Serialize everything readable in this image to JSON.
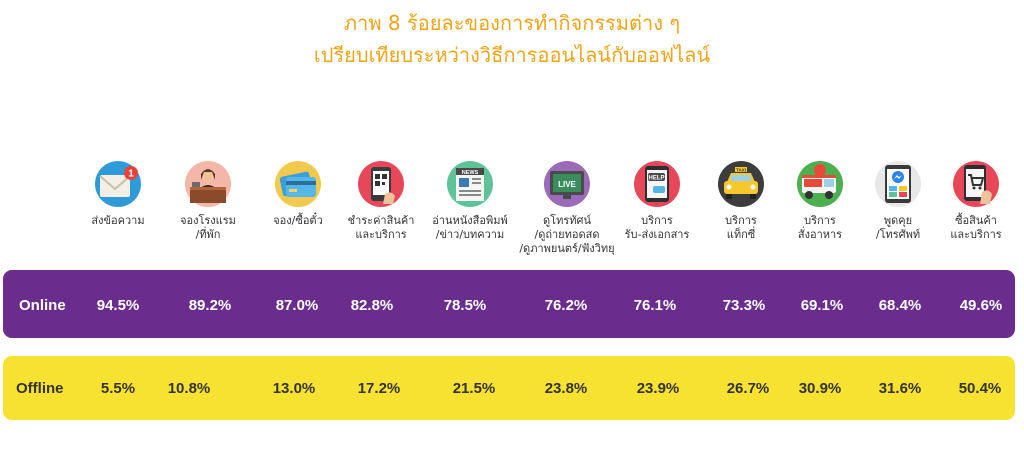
{
  "title_line1": "ภาพ 8 ร้อยละของการทำกิจกรรมต่าง ๆ",
  "title_line2": "เปรียบเทียบระหว่างวิธีการออนไลน์กับออฟไลน์",
  "colors": {
    "title": "#f0a416",
    "online_band": "#6a2d8e",
    "offline_band": "#f7e131"
  },
  "chart_data": {
    "type": "table",
    "categories": [
      "ส่งข้อความ",
      "จองโรงแรม\n/ที่พัก",
      "จอง/ซื้อตั๋ว",
      "ชำระค่าสินค้า\nและบริการ",
      "อ่านหนังสือพิมพ์\n/ข่าว/บทความ",
      "ดูโทรทัศน์\n/ดูถ่ายทอดสด\n/ดูภาพยนตร์/ฟังวิทยุ",
      "บริการ\nรับ-ส่งเอกสาร",
      "บริการ\nแท็กซี่",
      "บริการ\nสั่งอาหาร",
      "พูดคุย\n/โทรศัพท์",
      "ซื้อสินค้า\nและบริการ"
    ],
    "icons": [
      "envelope-icon",
      "hotel-reception-icon",
      "credit-card-icon",
      "qr-payment-icon",
      "newspaper-icon",
      "live-tv-icon",
      "help-chat-icon",
      "taxi-icon",
      "food-truck-icon",
      "messenger-icon",
      "shopping-cart-icon"
    ],
    "series": [
      {
        "name": "Online",
        "values": [
          94.5,
          89.2,
          87.0,
          82.8,
          78.5,
          76.2,
          76.1,
          73.3,
          69.1,
          68.4,
          49.6
        ],
        "labels": [
          "94.5%",
          "89.2%",
          "87.0%",
          "82.8%",
          "78.5%",
          "76.2%",
          "76.1%",
          "73.3%",
          "69.1%",
          "68.4%",
          "49.6%"
        ]
      },
      {
        "name": "Offline",
        "values": [
          5.5,
          10.8,
          13.0,
          17.2,
          21.5,
          23.8,
          23.9,
          26.7,
          30.9,
          31.6,
          50.4
        ],
        "labels": [
          "5.5%",
          "10.8%",
          "13.0%",
          "17.2%",
          "21.5%",
          "23.8%",
          "23.9%",
          "26.7%",
          "30.9%",
          "31.6%",
          "50.4%"
        ]
      }
    ]
  }
}
